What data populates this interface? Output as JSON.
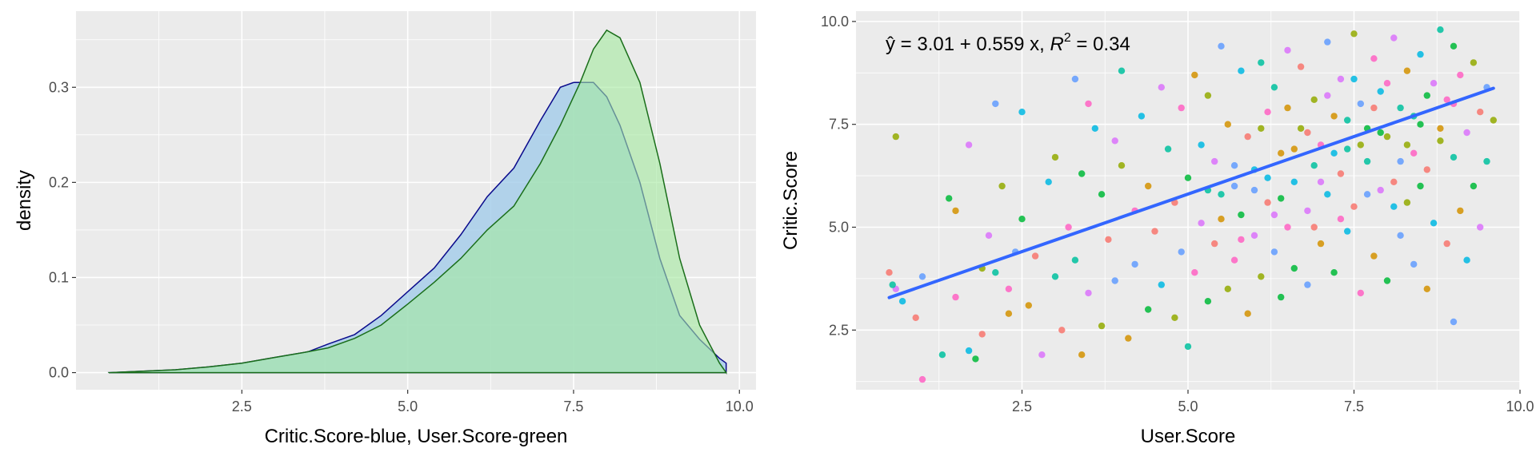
{
  "chart_data": [
    {
      "type": "area",
      "title": "",
      "xlabel": "Critic.Score-blue, User.Score-green",
      "ylabel": "density",
      "xlim": [
        0.0,
        10.25
      ],
      "ylim": [
        -0.018,
        0.38
      ],
      "x_ticks": [
        2.5,
        5.0,
        7.5,
        10.0
      ],
      "x_tick_labels": [
        "2.5",
        "5.0",
        "7.5",
        "10.0"
      ],
      "y_ticks": [
        0.0,
        0.1,
        0.2,
        0.3
      ],
      "y_tick_labels": [
        "0.0",
        "0.1",
        "0.2",
        "0.3"
      ],
      "grid": true,
      "legend": "none",
      "series": [
        {
          "fill": "#9dc9ea",
          "stroke": "#0a0a8c",
          "x": [
            0.5,
            1.5,
            2.0,
            2.5,
            3.0,
            3.5,
            3.8,
            4.2,
            4.6,
            5.0,
            5.4,
            5.8,
            6.2,
            6.6,
            7.0,
            7.3,
            7.5,
            7.8,
            8.0,
            8.2,
            8.5,
            8.8,
            9.1,
            9.4,
            9.7,
            9.8
          ],
          "y": [
            0.0,
            0.003,
            0.006,
            0.01,
            0.016,
            0.022,
            0.03,
            0.04,
            0.06,
            0.085,
            0.11,
            0.145,
            0.185,
            0.215,
            0.265,
            0.3,
            0.305,
            0.305,
            0.29,
            0.26,
            0.2,
            0.12,
            0.06,
            0.035,
            0.015,
            0.01
          ]
        },
        {
          "fill": "#a3ea9e",
          "stroke": "#1a6e1a",
          "x": [
            0.5,
            1.5,
            2.0,
            2.5,
            3.0,
            3.5,
            3.8,
            4.2,
            4.6,
            5.0,
            5.4,
            5.8,
            6.2,
            6.6,
            7.0,
            7.3,
            7.6,
            7.8,
            8.0,
            8.2,
            8.5,
            8.8,
            9.1,
            9.4,
            9.7,
            9.8
          ],
          "y": [
            0.0,
            0.003,
            0.006,
            0.01,
            0.016,
            0.022,
            0.026,
            0.036,
            0.05,
            0.072,
            0.095,
            0.12,
            0.15,
            0.175,
            0.22,
            0.26,
            0.305,
            0.34,
            0.36,
            0.352,
            0.305,
            0.22,
            0.12,
            0.05,
            0.01,
            0.0
          ]
        }
      ]
    },
    {
      "type": "scatter",
      "title": "",
      "xlabel": "User.Score",
      "ylabel": "Critic.Score",
      "xlim": [
        0.0,
        10.0
      ],
      "ylim": [
        1.05,
        10.25
      ],
      "x_ticks": [
        2.5,
        5.0,
        7.5,
        10.0
      ],
      "x_tick_labels": [
        "2.5",
        "5.0",
        "7.5",
        "10.0"
      ],
      "y_ticks": [
        2.5,
        5.0,
        7.5,
        10.0
      ],
      "y_tick_labels": [
        "2.5",
        "5.0",
        "7.5",
        "10.0"
      ],
      "grid": true,
      "legend": "none",
      "annotation": {
        "prefix": "ŷ = 3.01 + 0.559 x, ",
        "r2_label": "R",
        "r2_exp": "2",
        "r2_value": " = 0.34"
      },
      "regression": {
        "intercept": 3.01,
        "slope": 0.559,
        "x_range": [
          0.5,
          9.6
        ],
        "color": "#3366ff"
      },
      "point_colors": [
        "#f8766d",
        "#d39200",
        "#93aa00",
        "#00ba38",
        "#00c19f",
        "#00b9e3",
        "#619cff",
        "#db72fb",
        "#ff61c3"
      ],
      "points": [
        [
          0.5,
          3.9
        ],
        [
          0.6,
          3.5
        ],
        [
          0.7,
          3.2
        ],
        [
          0.55,
          3.6
        ],
        [
          0.6,
          7.2
        ],
        [
          0.9,
          2.8
        ],
        [
          1.0,
          1.3
        ],
        [
          1.0,
          3.8
        ],
        [
          1.3,
          1.9
        ],
        [
          1.4,
          5.7
        ],
        [
          1.5,
          5.4
        ],
        [
          1.5,
          3.3
        ],
        [
          1.7,
          7.0
        ],
        [
          1.7,
          2.0
        ],
        [
          1.8,
          1.8
        ],
        [
          1.9,
          4.0
        ],
        [
          1.9,
          2.4
        ],
        [
          2.0,
          4.8
        ],
        [
          2.1,
          8.0
        ],
        [
          2.1,
          3.9
        ],
        [
          2.2,
          6.0
        ],
        [
          2.3,
          2.9
        ],
        [
          2.3,
          3.5
        ],
        [
          2.4,
          4.4
        ],
        [
          2.5,
          7.8
        ],
        [
          2.5,
          5.2
        ],
        [
          2.6,
          3.1
        ],
        [
          2.7,
          4.3
        ],
        [
          2.8,
          1.9
        ],
        [
          2.9,
          6.1
        ],
        [
          3.0,
          3.8
        ],
        [
          3.0,
          6.7
        ],
        [
          3.1,
          2.5
        ],
        [
          3.2,
          5.0
        ],
        [
          3.3,
          8.6
        ],
        [
          3.3,
          4.2
        ],
        [
          3.4,
          6.3
        ],
        [
          3.4,
          1.9
        ],
        [
          3.5,
          8.0
        ],
        [
          3.5,
          3.4
        ],
        [
          3.6,
          7.4
        ],
        [
          3.7,
          5.8
        ],
        [
          3.7,
          2.6
        ],
        [
          3.8,
          4.7
        ],
        [
          3.9,
          7.1
        ],
        [
          3.9,
          3.7
        ],
        [
          4.0,
          8.8
        ],
        [
          4.0,
          6.5
        ],
        [
          4.1,
          2.3
        ],
        [
          4.2,
          5.4
        ],
        [
          4.2,
          4.1
        ],
        [
          4.3,
          7.7
        ],
        [
          4.4,
          3.0
        ],
        [
          4.4,
          6.0
        ],
        [
          4.5,
          4.9
        ],
        [
          4.6,
          8.4
        ],
        [
          4.6,
          3.6
        ],
        [
          4.7,
          6.9
        ],
        [
          4.8,
          2.8
        ],
        [
          4.8,
          5.6
        ],
        [
          4.9,
          7.9
        ],
        [
          4.9,
          4.4
        ],
        [
          5.0,
          2.1
        ],
        [
          5.0,
          6.2
        ],
        [
          5.1,
          8.7
        ],
        [
          5.1,
          3.9
        ],
        [
          5.2,
          5.1
        ],
        [
          5.2,
          7.0
        ],
        [
          5.3,
          3.2
        ],
        [
          5.3,
          8.2
        ],
        [
          5.4,
          4.6
        ],
        [
          5.4,
          6.6
        ],
        [
          5.5,
          9.4
        ],
        [
          5.5,
          5.8
        ],
        [
          5.6,
          3.5
        ],
        [
          5.6,
          7.5
        ],
        [
          5.7,
          4.2
        ],
        [
          5.7,
          6.0
        ],
        [
          5.8,
          8.8
        ],
        [
          5.8,
          5.3
        ],
        [
          5.9,
          2.9
        ],
        [
          5.9,
          7.2
        ],
        [
          6.0,
          4.8
        ],
        [
          6.0,
          6.4
        ],
        [
          6.1,
          9.0
        ],
        [
          6.1,
          3.8
        ],
        [
          6.2,
          5.6
        ],
        [
          6.2,
          7.8
        ],
        [
          6.3,
          4.4
        ],
        [
          6.3,
          8.4
        ],
        [
          6.4,
          3.3
        ],
        [
          6.4,
          6.8
        ],
        [
          6.5,
          5.0
        ],
        [
          6.5,
          9.3
        ],
        [
          6.6,
          6.1
        ],
        [
          6.6,
          4.0
        ],
        [
          6.7,
          7.4
        ],
        [
          6.7,
          8.9
        ],
        [
          6.8,
          5.4
        ],
        [
          6.8,
          3.6
        ],
        [
          6.9,
          6.5
        ],
        [
          6.9,
          8.1
        ],
        [
          7.0,
          4.6
        ],
        [
          7.0,
          7.0
        ],
        [
          7.1,
          9.5
        ],
        [
          7.1,
          5.8
        ],
        [
          7.2,
          3.9
        ],
        [
          7.2,
          7.7
        ],
        [
          7.3,
          6.3
        ],
        [
          7.3,
          8.6
        ],
        [
          7.4,
          4.9
        ],
        [
          7.4,
          6.9
        ],
        [
          7.5,
          9.7
        ],
        [
          7.5,
          5.5
        ],
        [
          7.6,
          3.4
        ],
        [
          7.6,
          8.0
        ],
        [
          7.7,
          6.6
        ],
        [
          7.7,
          7.4
        ],
        [
          7.8,
          4.3
        ],
        [
          7.8,
          9.1
        ],
        [
          7.9,
          5.9
        ],
        [
          7.9,
          8.3
        ],
        [
          8.0,
          3.7
        ],
        [
          8.0,
          7.2
        ],
        [
          8.1,
          6.1
        ],
        [
          8.1,
          9.6
        ],
        [
          8.2,
          4.8
        ],
        [
          8.2,
          7.9
        ],
        [
          8.3,
          5.6
        ],
        [
          8.3,
          8.8
        ],
        [
          8.4,
          6.8
        ],
        [
          8.4,
          4.1
        ],
        [
          8.5,
          9.2
        ],
        [
          8.5,
          7.5
        ],
        [
          8.6,
          3.5
        ],
        [
          8.6,
          6.4
        ],
        [
          8.7,
          8.5
        ],
        [
          8.7,
          5.1
        ],
        [
          8.8,
          9.8
        ],
        [
          8.8,
          7.1
        ],
        [
          8.9,
          4.6
        ],
        [
          8.9,
          8.1
        ],
        [
          9.0,
          2.7
        ],
        [
          9.0,
          6.7
        ],
        [
          9.0,
          9.4
        ],
        [
          9.1,
          5.4
        ],
        [
          9.1,
          8.7
        ],
        [
          9.2,
          7.3
        ],
        [
          9.2,
          4.2
        ],
        [
          9.3,
          6.0
        ],
        [
          9.3,
          9.0
        ],
        [
          9.4,
          7.8
        ],
        [
          9.4,
          5.0
        ],
        [
          9.5,
          8.4
        ],
        [
          9.5,
          6.6
        ],
        [
          9.6,
          7.6
        ],
        [
          5.5,
          5.2
        ],
        [
          5.8,
          4.7
        ],
        [
          6.0,
          5.9
        ],
        [
          6.2,
          6.2
        ],
        [
          6.4,
          5.7
        ],
        [
          6.6,
          6.9
        ],
        [
          6.8,
          7.3
        ],
        [
          7.0,
          6.1
        ],
        [
          7.2,
          6.8
        ],
        [
          7.4,
          7.6
        ],
        [
          7.6,
          7.0
        ],
        [
          7.8,
          7.9
        ],
        [
          8.0,
          8.5
        ],
        [
          8.2,
          6.6
        ],
        [
          8.4,
          7.7
        ],
        [
          8.6,
          8.2
        ],
        [
          8.8,
          7.4
        ],
        [
          9.0,
          8.0
        ],
        [
          7.1,
          8.2
        ],
        [
          7.5,
          8.6
        ],
        [
          7.9,
          7.3
        ],
        [
          8.3,
          7.0
        ],
        [
          6.9,
          5.0
        ],
        [
          6.3,
          5.3
        ],
        [
          5.7,
          6.5
        ],
        [
          5.3,
          5.9
        ],
        [
          6.1,
          7.4
        ],
        [
          6.5,
          7.9
        ],
        [
          7.3,
          5.2
        ],
        [
          7.7,
          5.8
        ],
        [
          8.1,
          5.5
        ],
        [
          8.5,
          6.0
        ]
      ]
    }
  ]
}
